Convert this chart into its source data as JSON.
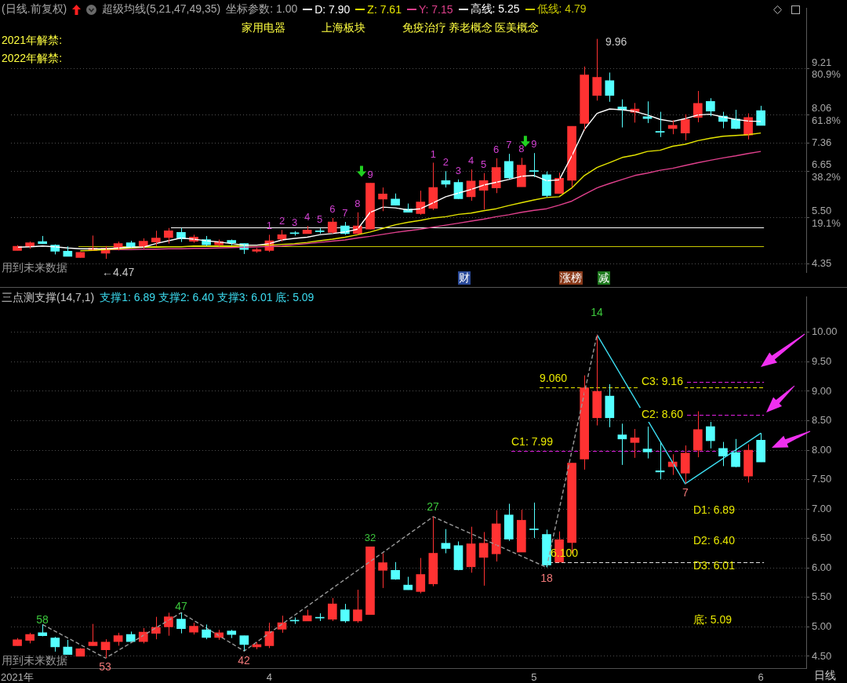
{
  "chart_data": [
    {
      "type": "candlestick",
      "title": "超级均线(5,21,47,49,35)",
      "subtitle": "(日线.前复权)",
      "categories": [
        null,
        null,
        null,
        null,
        null,
        null,
        null,
        null,
        null,
        null,
        null,
        null,
        null,
        null,
        null,
        null,
        null,
        null,
        null,
        null,
        null,
        null,
        null,
        null,
        null,
        null,
        null,
        null,
        null,
        null,
        null,
        null,
        null,
        null,
        null,
        null,
        null,
        null,
        null,
        null,
        null,
        null,
        null,
        null,
        null,
        null,
        null,
        null,
        null,
        null,
        null,
        null,
        null,
        null,
        null,
        null,
        null,
        null,
        null,
        null
      ],
      "tick_labels": "y",
      "legend": "top",
      "ohlc": [
        [
          4.68,
          4.81,
          4.68,
          4.78
        ],
        [
          4.77,
          4.9,
          4.72,
          4.87
        ],
        [
          4.9,
          5.04,
          4.84,
          4.85
        ],
        [
          4.81,
          4.83,
          4.58,
          4.66
        ],
        [
          4.66,
          4.78,
          4.53,
          4.53
        ],
        [
          4.5,
          4.64,
          4.5,
          4.63
        ],
        [
          4.68,
          5.05,
          4.68,
          4.74
        ],
        [
          4.61,
          4.79,
          4.47,
          4.74
        ],
        [
          4.75,
          4.9,
          4.68,
          4.85
        ],
        [
          4.87,
          4.92,
          4.75,
          4.75
        ],
        [
          4.75,
          4.98,
          4.72,
          4.91
        ],
        [
          4.89,
          5.17,
          4.79,
          4.99
        ],
        [
          5.0,
          5.24,
          4.85,
          5.17
        ],
        [
          5.13,
          5.24,
          4.89,
          4.97
        ],
        [
          4.91,
          5.07,
          4.87,
          5.01
        ],
        [
          4.95,
          5.04,
          4.79,
          4.82
        ],
        [
          4.82,
          4.95,
          4.78,
          4.9
        ],
        [
          4.93,
          4.95,
          4.81,
          4.87
        ],
        [
          4.85,
          4.85,
          4.59,
          4.7
        ],
        [
          4.66,
          4.74,
          4.62,
          4.7
        ],
        [
          4.68,
          5.07,
          4.64,
          4.92
        ],
        [
          4.96,
          5.19,
          4.9,
          5.07
        ],
        [
          5.11,
          5.16,
          5.05,
          5.1
        ],
        [
          5.1,
          5.29,
          5.1,
          5.19
        ],
        [
          5.16,
          5.23,
          5.1,
          5.15
        ],
        [
          5.13,
          5.49,
          5.1,
          5.39
        ],
        [
          5.29,
          5.39,
          5.07,
          5.1
        ],
        [
          5.1,
          5.63,
          5.07,
          5.29
        ],
        [
          5.21,
          6.36,
          5.21,
          6.36
        ],
        [
          5.96,
          6.25,
          5.66,
          6.09
        ],
        [
          5.96,
          6.1,
          5.8,
          5.81
        ],
        [
          5.71,
          5.85,
          5.63,
          5.63
        ],
        [
          5.6,
          6.17,
          5.57,
          5.89
        ],
        [
          5.73,
          6.87,
          5.69,
          6.25
        ],
        [
          6.42,
          6.66,
          6.25,
          6.33
        ],
        [
          6.38,
          6.45,
          5.96,
          5.97
        ],
        [
          6.02,
          6.7,
          5.92,
          6.41
        ],
        [
          6.18,
          6.61,
          5.7,
          6.42
        ],
        [
          6.24,
          6.98,
          6.11,
          6.75
        ],
        [
          6.9,
          7.09,
          6.46,
          6.49
        ],
        [
          6.27,
          6.99,
          6.27,
          6.81
        ],
        [
          6.66,
          7.11,
          6.51,
          6.65
        ],
        [
          6.57,
          6.65,
          6.01,
          6.05
        ],
        [
          6.1,
          6.62,
          6.1,
          6.48
        ],
        [
          6.43,
          7.78,
          6.25,
          7.78
        ],
        [
          7.85,
          9.27,
          7.67,
          9.06
        ],
        [
          8.55,
          9.96,
          8.42,
          9.0
        ],
        [
          8.92,
          9.12,
          8.39,
          8.55
        ],
        [
          8.26,
          8.45,
          7.75,
          8.19
        ],
        [
          8.13,
          8.36,
          7.87,
          8.21
        ],
        [
          8.02,
          8.4,
          7.86,
          7.97
        ],
        [
          7.65,
          8.14,
          7.51,
          7.63
        ],
        [
          7.72,
          7.93,
          7.58,
          7.8
        ],
        [
          7.61,
          8.08,
          7.43,
          7.95
        ],
        [
          8.0,
          8.66,
          7.88,
          8.35
        ],
        [
          8.4,
          8.48,
          8.03,
          8.16
        ],
        [
          8.03,
          8.14,
          7.73,
          7.9
        ],
        [
          7.96,
          8.19,
          7.71,
          7.72
        ],
        [
          7.56,
          8.1,
          7.45,
          8.0
        ],
        [
          8.17,
          8.29,
          7.8,
          7.8
        ]
      ],
      "colors": [
        "#ff3232",
        "#ff3232",
        "#54ffff",
        "#54ffff",
        "#54ffff",
        "#ff3232",
        "#ff3232",
        "#ff3232",
        "#ff3232",
        "#54ffff",
        "#ff3232",
        "#ff3232",
        "#ff3232",
        "#54ffff",
        "#ff3232",
        "#54ffff",
        "#ff3232",
        "#54ffff",
        "#54ffff",
        "#ff3232",
        "#ff3232",
        "#ff3232",
        "#54ffff",
        "#ff3232",
        "#54ffff",
        "#ff3232",
        "#54ffff",
        "#ff3232",
        "#ff3232",
        "#ff3232",
        "#54ffff",
        "#54ffff",
        "#ff3232",
        "#ff3232",
        "#54ffff",
        "#54ffff",
        "#ff3232",
        "#ff3232",
        "#ff3232",
        "#54ffff",
        "#ff3232",
        "#54ffff",
        "#54ffff",
        "#ff3232",
        "#ff3232",
        "#ff3232",
        "#ff3232",
        "#54ffff",
        "#54ffff",
        "#ff3232",
        "#54ffff",
        "#54ffff",
        "#ff3232",
        "#ff3232",
        "#ff3232",
        "#54ffff",
        "#54ffff",
        "#54ffff",
        "#ff3232",
        "#54ffff"
      ],
      "value_labels": [
        null,
        null,
        null,
        null,
        null,
        null,
        null,
        null,
        null,
        null,
        null,
        null,
        null,
        null,
        null,
        null,
        null,
        null,
        null,
        null,
        "1",
        "2",
        "3",
        "4",
        "5",
        "6",
        "7",
        "8",
        "9",
        null,
        null,
        null,
        null,
        "1",
        "2",
        "3",
        "4",
        "5",
        "6",
        "7",
        "8",
        "9",
        null,
        null,
        null,
        null,
        null,
        null,
        null,
        null,
        null,
        null,
        null,
        null,
        null,
        null,
        null,
        null,
        null,
        null
      ],
      "series": [
        {
          "name": "D: 7.90",
          "type": "line",
          "color": "#ffffff",
          "values": [
            4.76,
            4.77,
            4.79,
            4.77,
            4.74,
            4.72,
            4.72,
            4.72,
            4.74,
            4.76,
            4.76,
            4.85,
            4.92,
            4.99,
            4.96,
            4.92,
            4.89,
            4.85,
            4.81,
            4.81,
            4.85,
            4.94,
            4.98,
            5.01,
            5.07,
            5.1,
            5.14,
            5.21,
            5.63,
            5.76,
            5.74,
            5.69,
            5.72,
            5.87,
            6.02,
            6.11,
            6.2,
            6.31,
            6.38,
            6.45,
            6.53,
            6.55,
            6.42,
            6.44,
            7.04,
            7.7,
            8.1,
            8.21,
            8.19,
            8.15,
            8.06,
            7.95,
            7.9,
            7.97,
            8.06,
            8.08,
            8.01,
            7.95,
            7.91,
            7.9
          ]
        },
        {
          "name": "Z: 7.61",
          "type": "line",
          "color": "#e6e600",
          "values": [
            null,
            null,
            null,
            null,
            null,
            4.67,
            4.68,
            4.7,
            4.72,
            4.74,
            4.76,
            4.76,
            4.77,
            4.77,
            4.79,
            4.79,
            4.79,
            4.79,
            4.81,
            4.81,
            4.81,
            4.83,
            4.85,
            4.88,
            4.92,
            4.96,
            5.01,
            5.07,
            5.14,
            5.23,
            5.32,
            5.38,
            5.43,
            5.49,
            5.52,
            5.58,
            5.61,
            5.67,
            5.72,
            5.8,
            5.87,
            5.94,
            6.0,
            6.02,
            6.24,
            6.55,
            6.75,
            6.87,
            7.0,
            7.06,
            7.15,
            7.18,
            7.28,
            7.33,
            7.42,
            7.48,
            7.53,
            7.55,
            7.57,
            7.61
          ]
        },
        {
          "name": "Y: 7.15",
          "type": "line",
          "color": "#e0408c",
          "values": [
            null,
            null,
            null,
            null,
            null,
            null,
            null,
            4.7,
            4.7,
            4.7,
            4.71,
            4.71,
            4.72,
            4.72,
            4.73,
            4.73,
            4.74,
            4.75,
            4.76,
            4.77,
            4.78,
            4.79,
            4.82,
            4.85,
            4.88,
            4.91,
            4.94,
            4.99,
            5.03,
            5.08,
            5.13,
            5.17,
            5.21,
            5.26,
            5.31,
            5.36,
            5.41,
            5.46,
            5.52,
            5.57,
            5.63,
            5.68,
            5.72,
            5.81,
            5.91,
            6.08,
            6.24,
            6.35,
            6.45,
            6.55,
            6.61,
            6.68,
            6.73,
            6.8,
            6.87,
            6.93,
            6.99,
            7.04,
            7.1,
            7.15
          ]
        }
      ],
      "ylim": [
        4.13,
        10.72
      ],
      "yticks": [
        {
          "value": 9.21,
          "label": "9.21\n80.9%"
        },
        {
          "value": 8.06,
          "label": "8.06\n61.8%"
        },
        {
          "value": 7.36,
          "label": "7.36"
        },
        {
          "value": 6.65,
          "label": "6.65\n38.2%"
        },
        {
          "value": 5.5,
          "label": "5.50\n19.1%"
        },
        {
          "value": 4.35,
          "label": "4.35"
        }
      ],
      "grid": "y",
      "ref_lines": [
        {
          "axis": "y",
          "value": 5.25,
          "label": "高线: 5.25",
          "color": "#ffffff"
        },
        {
          "axis": "y",
          "value": 4.79,
          "label": "低线: 4.79",
          "color": "#c8c800"
        }
      ],
      "annotations": [
        "坐标参数: 1.00",
        "家用电器",
        "上海板块",
        "免疫治疗",
        "养老概念",
        "医美概念",
        "2021年解禁:",
        "2022年解禁:",
        "←4.47",
        "9.96",
        "用到未来数据",
        "财",
        "涨榜",
        "减"
      ]
    },
    {
      "type": "candlestick",
      "title": "三点测支撑(14,7,1)",
      "categories": [
        "2021年",
        null,
        null,
        null,
        null,
        null,
        null,
        null,
        null,
        null,
        null,
        null,
        null,
        null,
        null,
        null,
        null,
        null,
        null,
        null,
        "4",
        null,
        null,
        null,
        null,
        null,
        null,
        null,
        null,
        null,
        null,
        null,
        null,
        null,
        null,
        null,
        null,
        null,
        null,
        null,
        null,
        "5",
        null,
        null,
        null,
        null,
        null,
        null,
        null,
        null,
        null,
        null,
        null,
        null,
        null,
        null,
        null,
        null,
        null,
        "6"
      ],
      "ohlc": [
        [
          4.68,
          4.81,
          4.68,
          4.78
        ],
        [
          4.77,
          4.9,
          4.72,
          4.87
        ],
        [
          4.9,
          5.04,
          4.84,
          4.85
        ],
        [
          4.81,
          4.83,
          4.58,
          4.66
        ],
        [
          4.66,
          4.78,
          4.53,
          4.53
        ],
        [
          4.5,
          4.64,
          4.5,
          4.63
        ],
        [
          4.68,
          5.05,
          4.68,
          4.74
        ],
        [
          4.61,
          4.79,
          4.47,
          4.74
        ],
        [
          4.75,
          4.9,
          4.68,
          4.85
        ],
        [
          4.87,
          4.92,
          4.75,
          4.75
        ],
        [
          4.75,
          4.98,
          4.72,
          4.91
        ],
        [
          4.89,
          5.17,
          4.79,
          4.99
        ],
        [
          5.0,
          5.24,
          4.85,
          5.17
        ],
        [
          5.13,
          5.24,
          4.89,
          4.97
        ],
        [
          4.91,
          5.07,
          4.87,
          5.01
        ],
        [
          4.95,
          5.04,
          4.79,
          4.82
        ],
        [
          4.82,
          4.95,
          4.78,
          4.9
        ],
        [
          4.93,
          4.95,
          4.81,
          4.87
        ],
        [
          4.85,
          4.85,
          4.59,
          4.7
        ],
        [
          4.66,
          4.74,
          4.62,
          4.7
        ],
        [
          4.68,
          5.07,
          4.64,
          4.92
        ],
        [
          4.96,
          5.19,
          4.9,
          5.07
        ],
        [
          5.11,
          5.16,
          5.05,
          5.1
        ],
        [
          5.1,
          5.29,
          5.1,
          5.19
        ],
        [
          5.16,
          5.23,
          5.1,
          5.15
        ],
        [
          5.13,
          5.49,
          5.1,
          5.39
        ],
        [
          5.29,
          5.39,
          5.07,
          5.1
        ],
        [
          5.1,
          5.63,
          5.07,
          5.29
        ],
        [
          5.21,
          6.36,
          5.21,
          6.36
        ],
        [
          5.96,
          6.25,
          5.66,
          6.09
        ],
        [
          5.96,
          6.1,
          5.8,
          5.81
        ],
        [
          5.71,
          5.85,
          5.63,
          5.63
        ],
        [
          5.6,
          6.17,
          5.57,
          5.89
        ],
        [
          5.73,
          6.87,
          5.69,
          6.25
        ],
        [
          6.42,
          6.66,
          6.25,
          6.33
        ],
        [
          6.38,
          6.45,
          5.96,
          5.97
        ],
        [
          6.02,
          6.7,
          5.92,
          6.41
        ],
        [
          6.18,
          6.61,
          5.7,
          6.42
        ],
        [
          6.24,
          6.98,
          6.11,
          6.75
        ],
        [
          6.9,
          7.09,
          6.46,
          6.49
        ],
        [
          6.27,
          6.99,
          6.27,
          6.81
        ],
        [
          6.66,
          7.11,
          6.51,
          6.65
        ],
        [
          6.57,
          6.65,
          6.01,
          6.05
        ],
        [
          6.1,
          6.62,
          6.1,
          6.48
        ],
        [
          6.43,
          7.78,
          6.25,
          7.78
        ],
        [
          7.85,
          9.27,
          7.67,
          9.06
        ],
        [
          8.55,
          9.96,
          8.42,
          9.0
        ],
        [
          8.92,
          9.12,
          8.39,
          8.55
        ],
        [
          8.26,
          8.45,
          7.75,
          8.19
        ],
        [
          8.13,
          8.36,
          7.87,
          8.21
        ],
        [
          8.02,
          8.4,
          7.86,
          7.97
        ],
        [
          7.65,
          8.14,
          7.51,
          7.63
        ],
        [
          7.72,
          7.93,
          7.58,
          7.8
        ],
        [
          7.61,
          8.08,
          7.43,
          7.95
        ],
        [
          8.0,
          8.66,
          7.88,
          8.35
        ],
        [
          8.4,
          8.48,
          8.03,
          8.16
        ],
        [
          8.03,
          8.14,
          7.73,
          7.9
        ],
        [
          7.96,
          8.19,
          7.71,
          7.72
        ],
        [
          7.56,
          8.1,
          7.45,
          8.0
        ],
        [
          8.17,
          8.29,
          7.8,
          7.8
        ]
      ],
      "colors": [
        "#ff3232",
        "#ff3232",
        "#54ffff",
        "#54ffff",
        "#54ffff",
        "#ff3232",
        "#ff3232",
        "#ff3232",
        "#ff3232",
        "#54ffff",
        "#ff3232",
        "#ff3232",
        "#ff3232",
        "#54ffff",
        "#ff3232",
        "#54ffff",
        "#ff3232",
        "#54ffff",
        "#54ffff",
        "#ff3232",
        "#ff3232",
        "#ff3232",
        "#54ffff",
        "#ff3232",
        "#54ffff",
        "#ff3232",
        "#54ffff",
        "#ff3232",
        "#ff3232",
        "#ff3232",
        "#54ffff",
        "#54ffff",
        "#ff3232",
        "#ff3232",
        "#54ffff",
        "#54ffff",
        "#ff3232",
        "#ff3232",
        "#ff3232",
        "#54ffff",
        "#ff3232",
        "#54ffff",
        "#54ffff",
        "#ff3232",
        "#ff3232",
        "#ff3232",
        "#ff3232",
        "#54ffff",
        "#54ffff",
        "#ff3232",
        "#54ffff",
        "#54ffff",
        "#ff3232",
        "#ff3232",
        "#ff3232",
        "#54ffff",
        "#54ffff",
        "#54ffff",
        "#ff3232",
        "#54ffff"
      ],
      "value_labels": [
        null,
        null,
        null,
        null,
        null,
        null,
        null,
        null,
        null,
        null,
        null,
        null,
        null,
        null,
        null,
        null,
        null,
        null,
        null,
        null,
        null,
        null,
        null,
        null,
        null,
        null,
        null,
        null,
        "32",
        null,
        null,
        null,
        null,
        null,
        null,
        null,
        null,
        null,
        null,
        null,
        null,
        null,
        null,
        null,
        null,
        null,
        null,
        null,
        null,
        null,
        null,
        null,
        null,
        null,
        null,
        null,
        null,
        null,
        null,
        null
      ],
      "series": [
        {
          "type": "line",
          "color": "#9a9a9a",
          "line_style": "dashed",
          "values": [
            null,
            null,
            5.04,
            null,
            null,
            null,
            null,
            4.47,
            null,
            null,
            null,
            null,
            null,
            5.24,
            null,
            null,
            null,
            null,
            4.59,
            null,
            null,
            null,
            null,
            null,
            null,
            null,
            null,
            null,
            null,
            null,
            null,
            null,
            null,
            6.87,
            null,
            null,
            null,
            null,
            null,
            null,
            null,
            null,
            6.01,
            null,
            null,
            null,
            9.96,
            null,
            null,
            null,
            null,
            null,
            null,
            null,
            null,
            null,
            null,
            null,
            null,
            null
          ]
        },
        {
          "type": "line",
          "color": "#3cdcf0",
          "values": [
            null,
            null,
            null,
            null,
            null,
            null,
            null,
            null,
            null,
            null,
            null,
            null,
            null,
            null,
            null,
            null,
            null,
            null,
            null,
            null,
            null,
            null,
            null,
            null,
            null,
            null,
            null,
            null,
            null,
            null,
            null,
            null,
            null,
            null,
            null,
            null,
            null,
            null,
            null,
            null,
            null,
            null,
            null,
            null,
            null,
            null,
            9.96,
            null,
            null,
            null,
            null,
            null,
            null,
            7.43,
            null,
            null,
            null,
            null,
            null,
            8.29
          ]
        }
      ],
      "ylim": [
        4.3,
        10.6
      ],
      "yticks": [
        {
          "value": 4.5,
          "label": "4.50"
        },
        {
          "value": 5,
          "label": "5.00"
        },
        {
          "value": 5.5,
          "label": "5.50"
        },
        {
          "value": 6,
          "label": "6.00"
        },
        {
          "value": 6.5,
          "label": "6.50"
        },
        {
          "value": 7,
          "label": "7.00"
        },
        {
          "value": 7.5,
          "label": "7.50"
        },
        {
          "value": 8,
          "label": "8.00"
        },
        {
          "value": 8.5,
          "label": "8.50"
        },
        {
          "value": 9,
          "label": "9.00"
        },
        {
          "value": 9.5,
          "label": "9.50"
        },
        {
          "value": 10,
          "label": "10.00"
        }
      ],
      "grid": "y",
      "ref_lines": [
        {
          "axis": "y",
          "value": 9.06,
          "label": "9.060",
          "color": "#e8e800",
          "line_style": "dashed"
        },
        {
          "axis": "y",
          "value": 6.1,
          "label": "6.100",
          "color": "#e0e0e0",
          "line_style": "dashed"
        },
        {
          "axis": "y",
          "value": 9.16,
          "label": "C3: 9.16",
          "color": "#e020e0",
          "line_style": "dashed"
        },
        {
          "axis": "y",
          "value": 8.6,
          "label": "C2: 8.60",
          "color": "#e020e0",
          "line_style": "dashed"
        },
        {
          "axis": "y",
          "value": 7.99,
          "label": "C1: 7.99",
          "color": "#e020e0",
          "line_style": "dashed"
        }
      ],
      "annotations": [
        "支撑1: 6.89 支撑2: 6.40 支撑3: 6.01 底: 5.09",
        "D1: 6.89",
        "D2: 6.40",
        "D3: 6.01",
        "底: 5.09",
        "用到未来数据",
        "日线",
        "58",
        "53",
        "47",
        "42",
        "27",
        "18",
        "14",
        "7"
      ]
    }
  ]
}
